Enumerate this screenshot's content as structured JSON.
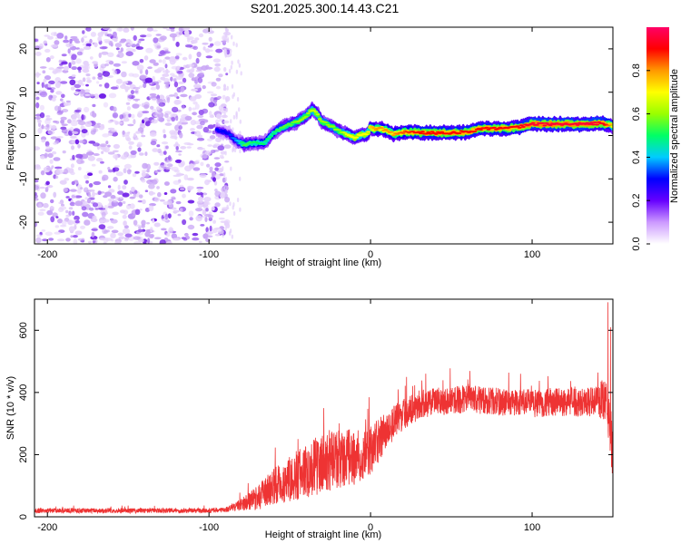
{
  "title": "S201.2025.300.14.43.C21",
  "chart_data": [
    {
      "type": "heatmap",
      "name": "spectrogram",
      "xlabel": "Height of straight line (km)",
      "ylabel": "Frequency (Hz)",
      "xlim": [
        -208,
        150
      ],
      "ylim": [
        -25,
        25
      ],
      "xticks": [
        -200,
        -100,
        0,
        100
      ],
      "yticks": [
        -20,
        -10,
        0,
        10,
        20
      ],
      "noise_region_x": [
        -208,
        -92
      ],
      "signal_ridge": {
        "x": [
          -95,
          -88,
          -82,
          -78,
          -72,
          -66,
          -60,
          -55,
          -50,
          -45,
          -40,
          -36,
          -33,
          -30,
          -26,
          -22,
          -18,
          -14,
          -10,
          -6,
          -2,
          0,
          3,
          6,
          10,
          14,
          20,
          30,
          40,
          50,
          60,
          70,
          80,
          90,
          100,
          110,
          120,
          130,
          140,
          146,
          150
        ],
        "y": [
          1.2,
          0.5,
          -1.5,
          -2.0,
          -1.7,
          -1.8,
          0.5,
          1.8,
          2.6,
          3.2,
          4.5,
          6.0,
          5.0,
          3.2,
          2.4,
          1.6,
          0.8,
          0.2,
          -0.6,
          0.3,
          0.2,
          1.9,
          1.4,
          1.6,
          1.2,
          0.3,
          0.8,
          0.7,
          0.6,
          0.7,
          0.8,
          1.7,
          1.6,
          1.8,
          2.7,
          2.6,
          2.7,
          2.6,
          2.8,
          2.7,
          2.1
        ],
        "amplitude": [
          0.3,
          0.3,
          0.4,
          0.55,
          0.5,
          0.5,
          0.5,
          0.55,
          0.55,
          0.6,
          0.6,
          0.65,
          0.65,
          0.6,
          0.6,
          0.6,
          0.6,
          0.7,
          0.7,
          0.7,
          0.7,
          0.75,
          0.8,
          0.8,
          0.8,
          0.8,
          0.85,
          0.9,
          0.9,
          0.9,
          0.9,
          0.9,
          0.9,
          0.9,
          0.95,
          0.95,
          0.95,
          0.95,
          0.95,
          0.9,
          0.7
        ]
      },
      "colorbar": {
        "label": "Normalized spectral amplitude",
        "range": [
          0,
          1
        ],
        "ticks": [
          "0.0",
          "0.2",
          "0.4",
          "0.6",
          "0.8"
        ],
        "tick_values": [
          0,
          0.2,
          0.4,
          0.6,
          0.8
        ],
        "colors": [
          "#ffffff",
          "#cc99ff",
          "#6600ff",
          "#0000ff",
          "#00ccff",
          "#00ff66",
          "#99ff00",
          "#ffff00",
          "#ff9900",
          "#ff0000",
          "#ff0066"
        ]
      }
    },
    {
      "type": "line",
      "name": "snr",
      "xlabel": "Height of straight line (km)",
      "ylabel": "SNR (10 * v/v)",
      "xlim": [
        -208,
        150
      ],
      "ylim": [
        0,
        700
      ],
      "xticks": [
        -200,
        -100,
        0,
        100
      ],
      "yticks": [
        0,
        200,
        400,
        600
      ],
      "color": "#ee3333",
      "trend": {
        "x": [
          -208,
          -150,
          -100,
          -90,
          -80,
          -70,
          -60,
          -50,
          -40,
          -30,
          -20,
          -10,
          0,
          10,
          20,
          30,
          40,
          60,
          80,
          100,
          120,
          140,
          145,
          148,
          150
        ],
        "y": [
          20,
          20,
          20,
          22,
          40,
          60,
          100,
          120,
          150,
          170,
          180,
          190,
          210,
          280,
          330,
          360,
          370,
          380,
          370,
          365,
          370,
          370,
          380,
          300,
          200
        ]
      },
      "noise_amplitude": {
        "x": [
          -208,
          -90,
          -80,
          -60,
          -40,
          -20,
          0,
          20,
          40,
          100,
          140,
          150
        ],
        "y": [
          8,
          8,
          20,
          60,
          90,
          100,
          80,
          50,
          45,
          45,
          50,
          90
        ]
      },
      "peaks": [
        {
          "x": 147,
          "y": 690
        },
        {
          "x": 148.5,
          "y": 610
        }
      ]
    }
  ]
}
